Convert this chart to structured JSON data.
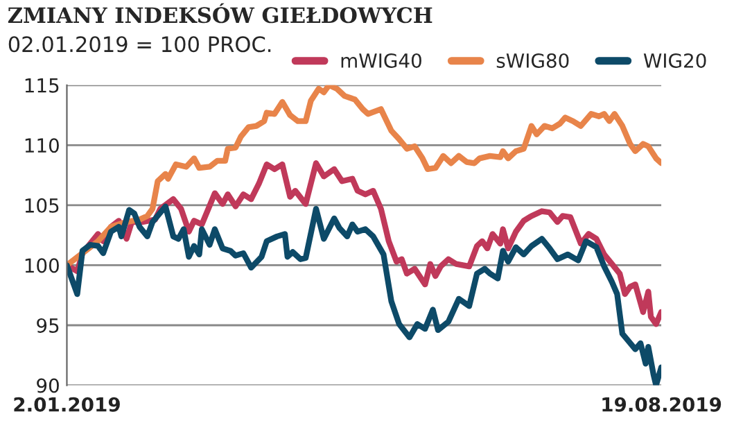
{
  "chart_data": {
    "type": "line",
    "title": "ZMIANY INDEKSÓW GIEŁDOWYCH",
    "subtitle": "02.01.2019 = 100 PROC.",
    "ylim": [
      90,
      115
    ],
    "yticks": [
      90,
      95,
      100,
      105,
      110,
      115
    ],
    "xlim": [
      "2019-01-02",
      "2019-08-19"
    ],
    "xticks": [
      {
        "value": "2019-01-02",
        "label": "2.01.2019"
      },
      {
        "value": "2019-08-19",
        "label": "19.08.2019"
      }
    ],
    "grid": "y",
    "legend": "top right",
    "line_style": "solid",
    "series": [
      {
        "name": "mWIG40",
        "color": "#c0395a",
        "x": [
          "2019-01-02",
          "2019-01-06",
          "2019-01-08",
          "2019-01-14",
          "2019-01-16",
          "2019-01-19",
          "2019-01-22",
          "2019-01-25",
          "2019-01-27",
          "2019-01-31",
          "2019-02-05",
          "2019-02-07",
          "2019-02-12",
          "2019-02-15",
          "2019-02-18",
          "2019-02-20",
          "2019-02-23",
          "2019-02-28",
          "2019-03-03",
          "2019-03-05",
          "2019-03-08",
          "2019-03-11",
          "2019-03-14",
          "2019-03-17",
          "2019-03-20",
          "2019-03-23",
          "2019-03-26",
          "2019-03-29",
          "2019-03-31",
          "2019-04-04",
          "2019-04-08",
          "2019-04-11",
          "2019-04-15",
          "2019-04-18",
          "2019-04-22",
          "2019-04-24",
          "2019-04-27",
          "2019-04-30",
          "2019-05-03",
          "2019-05-06",
          "2019-05-09",
          "2019-05-11",
          "2019-05-13",
          "2019-05-16",
          "2019-05-20",
          "2019-05-22",
          "2019-05-24",
          "2019-05-26",
          "2019-05-29",
          "2019-06-01",
          "2019-06-06",
          "2019-06-09",
          "2019-06-11",
          "2019-06-13",
          "2019-06-15",
          "2019-06-18",
          "2019-06-19",
          "2019-06-21",
          "2019-06-24",
          "2019-06-27",
          "2019-06-30",
          "2019-07-04",
          "2019-07-07",
          "2019-07-10",
          "2019-07-12",
          "2019-07-15",
          "2019-07-19",
          "2019-07-22",
          "2019-07-25",
          "2019-07-28",
          "2019-07-31",
          "2019-08-03",
          "2019-08-05",
          "2019-08-07",
          "2019-08-09",
          "2019-08-12",
          "2019-08-14",
          "2019-08-15",
          "2019-08-17",
          "2019-08-19"
        ],
        "values": [
          100,
          99.5,
          101,
          102.6,
          102,
          103.2,
          103.7,
          102.2,
          103.6,
          103.6,
          103.8,
          104.7,
          105.5,
          104.7,
          102.8,
          103.7,
          103.4,
          106,
          105.1,
          105.9,
          104.9,
          105.9,
          105.5,
          106.8,
          108.4,
          108,
          108.4,
          105.7,
          106.2,
          105.1,
          108.5,
          107.4,
          108,
          107,
          107.2,
          106.2,
          105.9,
          106.2,
          104.7,
          102,
          100.3,
          100.5,
          99.3,
          99.7,
          98.4,
          100.1,
          99.1,
          99.9,
          100.5,
          100.1,
          99.9,
          101.6,
          102,
          101.4,
          102.6,
          101.8,
          103,
          101.4,
          102.8,
          103.7,
          104.1,
          104.5,
          104.4,
          103.6,
          104.1,
          104,
          101.8,
          102.6,
          102.2,
          100.9,
          100.1,
          99.3,
          97.6,
          98.2,
          98.4,
          96.1,
          97.8,
          95.7,
          95.1,
          96.1
        ]
      },
      {
        "name": "sWIG80",
        "color": "#e8844a",
        "x": [
          "2019-01-02",
          "2019-01-08",
          "2019-01-14",
          "2019-01-19",
          "2019-01-25",
          "2019-01-30",
          "2019-02-02",
          "2019-02-04",
          "2019-02-06",
          "2019-02-09",
          "2019-02-10",
          "2019-02-13",
          "2019-02-17",
          "2019-02-20",
          "2019-02-22",
          "2019-02-26",
          "2019-03-01",
          "2019-03-04",
          "2019-03-05",
          "2019-03-08",
          "2019-03-10",
          "2019-03-13",
          "2019-03-16",
          "2019-03-19",
          "2019-03-20",
          "2019-03-23",
          "2019-03-26",
          "2019-03-29",
          "2019-04-01",
          "2019-04-04",
          "2019-04-06",
          "2019-04-09",
          "2019-04-11",
          "2019-04-13",
          "2019-04-16",
          "2019-04-19",
          "2019-04-23",
          "2019-04-26",
          "2019-04-28",
          "2019-05-03",
          "2019-05-07",
          "2019-05-10",
          "2019-05-13",
          "2019-05-16",
          "2019-05-19",
          "2019-05-21",
          "2019-05-24",
          "2019-05-27",
          "2019-05-30",
          "2019-06-02",
          "2019-06-05",
          "2019-06-08",
          "2019-06-10",
          "2019-06-14",
          "2019-06-18",
          "2019-06-19",
          "2019-06-21",
          "2019-06-24",
          "2019-06-27",
          "2019-06-30",
          "2019-07-02",
          "2019-07-05",
          "2019-07-08",
          "2019-07-11",
          "2019-07-13",
          "2019-07-16",
          "2019-07-19",
          "2019-07-23",
          "2019-07-26",
          "2019-07-28",
          "2019-07-30",
          "2019-08-01",
          "2019-08-04",
          "2019-08-07",
          "2019-08-09",
          "2019-08-12",
          "2019-08-14",
          "2019-08-17",
          "2019-08-19"
        ],
        "values": [
          100,
          101,
          102,
          103.2,
          103.6,
          103.8,
          104.1,
          104.7,
          107,
          107.6,
          107.2,
          108.4,
          108.2,
          108.9,
          108.1,
          108.2,
          108.7,
          108.7,
          109.7,
          109.8,
          110.7,
          111.5,
          111.6,
          112,
          112.7,
          112.6,
          113.6,
          112.5,
          112,
          112,
          113.7,
          114.7,
          114.4,
          115,
          114.7,
          114.1,
          113.8,
          113,
          112.6,
          113,
          111.2,
          110.5,
          109.7,
          109.9,
          108.9,
          108,
          108.1,
          109.1,
          108.5,
          109.1,
          108.6,
          108.5,
          108.9,
          109.1,
          109,
          109.5,
          108.9,
          109.5,
          109.7,
          111.6,
          110.9,
          111.6,
          111.4,
          111.8,
          112.3,
          112,
          111.6,
          112.6,
          112.4,
          112.6,
          112,
          112.6,
          111.6,
          110.1,
          109.5,
          110.1,
          109.9,
          108.9,
          108.5
        ]
      },
      {
        "name": "WIG20",
        "color": "#0d4a68",
        "x": [
          "2019-01-02",
          "2019-01-06",
          "2019-01-08",
          "2019-01-11",
          "2019-01-14",
          "2019-01-16",
          "2019-01-19",
          "2019-01-22",
          "2019-01-23",
          "2019-01-26",
          "2019-01-28",
          "2019-01-30",
          "2019-02-02",
          "2019-02-04",
          "2019-02-09",
          "2019-02-12",
          "2019-02-14",
          "2019-02-16",
          "2019-02-18",
          "2019-02-20",
          "2019-02-22",
          "2019-02-23",
          "2019-02-26",
          "2019-02-28",
          "2019-03-03",
          "2019-03-06",
          "2019-03-08",
          "2019-03-11",
          "2019-03-14",
          "2019-03-18",
          "2019-03-20",
          "2019-03-24",
          "2019-03-27",
          "2019-03-28",
          "2019-03-30",
          "2019-04-02",
          "2019-04-04",
          "2019-04-08",
          "2019-04-11",
          "2019-04-15",
          "2019-04-17",
          "2019-04-20",
          "2019-04-22",
          "2019-04-24",
          "2019-04-27",
          "2019-04-30",
          "2019-05-04",
          "2019-05-07",
          "2019-05-10",
          "2019-05-14",
          "2019-05-17",
          "2019-05-20",
          "2019-05-23",
          "2019-05-25",
          "2019-05-29",
          "2019-06-02",
          "2019-06-06",
          "2019-06-09",
          "2019-06-12",
          "2019-06-14",
          "2019-06-17",
          "2019-06-19",
          "2019-06-21",
          "2019-06-24",
          "2019-06-27",
          "2019-06-30",
          "2019-07-04",
          "2019-07-07",
          "2019-07-10",
          "2019-07-14",
          "2019-07-18",
          "2019-07-21",
          "2019-07-25",
          "2019-07-28",
          "2019-07-31",
          "2019-08-02",
          "2019-08-04",
          "2019-08-09",
          "2019-08-11",
          "2019-08-13",
          "2019-08-14",
          "2019-08-16",
          "2019-08-17",
          "2019-08-19"
        ],
        "values": [
          100,
          97.6,
          101.2,
          101.7,
          101.6,
          101,
          102.8,
          103.2,
          102.4,
          104.6,
          104.3,
          103.2,
          102.4,
          103.6,
          104.9,
          102.4,
          102.2,
          103,
          100.7,
          101.6,
          100.9,
          103,
          101.7,
          103,
          101.4,
          101.2,
          100.8,
          101,
          99.8,
          100.7,
          102,
          102.4,
          102.6,
          100.7,
          101.1,
          100.5,
          100.6,
          104.7,
          102.2,
          103.9,
          103.1,
          102.4,
          103.4,
          102.8,
          103,
          102.4,
          100.9,
          97,
          95.1,
          94,
          95.1,
          94.7,
          96.3,
          94.6,
          95.3,
          97.2,
          96.6,
          99.3,
          99.7,
          99.3,
          98.9,
          101.2,
          100.3,
          101.5,
          100.9,
          101.6,
          102.2,
          101.4,
          100.5,
          100.9,
          100.4,
          102,
          101.5,
          99.9,
          98.6,
          97.6,
          94.3,
          93,
          93.5,
          91.8,
          93.2,
          90.9,
          90,
          91.5
        ]
      }
    ]
  }
}
